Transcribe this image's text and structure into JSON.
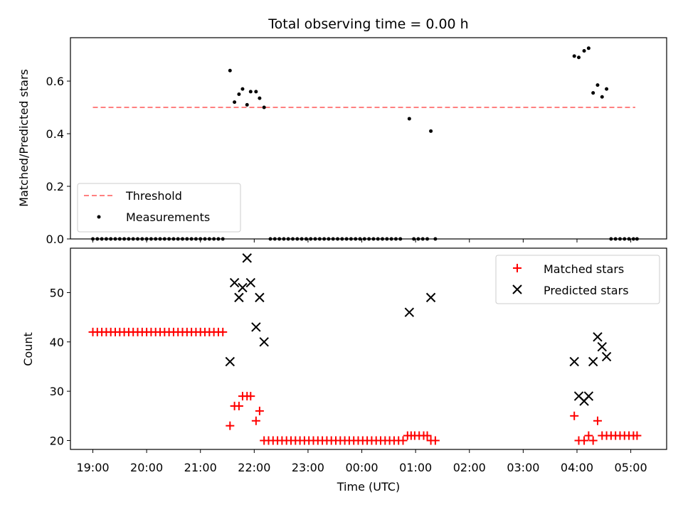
{
  "chart_data": [
    {
      "type": "scatter",
      "title": "Total observing time = 0.00 h",
      "xlabel": "",
      "ylabel": "Matched/Predicted stars",
      "xlim": [
        "18:35",
        "05:40"
      ],
      "ylim": [
        0,
        0.765
      ],
      "yticks": [
        0.0,
        0.2,
        0.4,
        0.6
      ],
      "ytick_labels": [
        "0.0",
        "0.2",
        "0.4",
        "0.6"
      ],
      "grid": false,
      "legend": "lower-left",
      "threshold": {
        "name": "Threshold",
        "value": 0.5,
        "x_start": "19:00",
        "x_end": "05:05",
        "color": "#ff8080",
        "style": "dashed"
      },
      "series": [
        {
          "name": "Measurements",
          "marker": "dot",
          "color": "#000000",
          "points": [
            [
              "19:00",
              0
            ],
            [
              "19:05",
              0
            ],
            [
              "19:10",
              0
            ],
            [
              "19:15",
              0
            ],
            [
              "19:20",
              0
            ],
            [
              "19:25",
              0
            ],
            [
              "19:30",
              0
            ],
            [
              "19:35",
              0
            ],
            [
              "19:40",
              0
            ],
            [
              "19:45",
              0
            ],
            [
              "19:50",
              0
            ],
            [
              "19:55",
              0
            ],
            [
              "20:00",
              0
            ],
            [
              "20:05",
              0
            ],
            [
              "20:10",
              0
            ],
            [
              "20:15",
              0
            ],
            [
              "20:20",
              0
            ],
            [
              "20:25",
              0
            ],
            [
              "20:30",
              0
            ],
            [
              "20:35",
              0
            ],
            [
              "20:40",
              0
            ],
            [
              "20:45",
              0
            ],
            [
              "20:50",
              0
            ],
            [
              "20:55",
              0
            ],
            [
              "21:00",
              0
            ],
            [
              "21:05",
              0
            ],
            [
              "21:10",
              0
            ],
            [
              "21:15",
              0
            ],
            [
              "21:20",
              0
            ],
            [
              "21:25",
              0
            ],
            [
              "21:33",
              0.64
            ],
            [
              "21:38",
              0.52
            ],
            [
              "21:43",
              0.55
            ],
            [
              "21:47",
              0.57
            ],
            [
              "21:52",
              0.51
            ],
            [
              "21:56",
              0.56
            ],
            [
              "22:02",
              0.56
            ],
            [
              "22:06",
              0.535
            ],
            [
              "22:11",
              0.5
            ],
            [
              "22:18",
              0
            ],
            [
              "22:23",
              0
            ],
            [
              "22:28",
              0
            ],
            [
              "22:33",
              0
            ],
            [
              "22:38",
              0
            ],
            [
              "22:43",
              0
            ],
            [
              "22:48",
              0
            ],
            [
              "22:53",
              0
            ],
            [
              "22:58",
              0
            ],
            [
              "23:03",
              0
            ],
            [
              "23:08",
              0
            ],
            [
              "23:13",
              0
            ],
            [
              "23:18",
              0
            ],
            [
              "23:23",
              0
            ],
            [
              "23:28",
              0
            ],
            [
              "23:33",
              0
            ],
            [
              "23:38",
              0
            ],
            [
              "23:43",
              0
            ],
            [
              "23:48",
              0
            ],
            [
              "23:53",
              0
            ],
            [
              "23:58",
              0
            ],
            [
              "00:03",
              0
            ],
            [
              "00:08",
              0
            ],
            [
              "00:13",
              0
            ],
            [
              "00:18",
              0
            ],
            [
              "00:23",
              0
            ],
            [
              "00:28",
              0
            ],
            [
              "00:33",
              0
            ],
            [
              "00:38",
              0
            ],
            [
              "00:43",
              0
            ],
            [
              "00:53",
              0.457
            ],
            [
              "00:58",
              0
            ],
            [
              "01:03",
              0
            ],
            [
              "01:08",
              0
            ],
            [
              "01:13",
              0
            ],
            [
              "01:17",
              0.41
            ],
            [
              "01:22",
              0
            ],
            [
              "03:57",
              0.695
            ],
            [
              "04:02",
              0.69
            ],
            [
              "04:08",
              0.715
            ],
            [
              "04:13",
              0.725
            ],
            [
              "04:18",
              0.555
            ],
            [
              "04:23",
              0.585
            ],
            [
              "04:28",
              0.54
            ],
            [
              "04:33",
              0.57
            ],
            [
              "04:38",
              0
            ],
            [
              "04:43",
              0
            ],
            [
              "04:48",
              0
            ],
            [
              "04:53",
              0
            ],
            [
              "04:58",
              0
            ],
            [
              "05:03",
              0
            ],
            [
              "05:07",
              0
            ]
          ]
        }
      ]
    },
    {
      "type": "scatter",
      "title": "",
      "xlabel": "Time (UTC)",
      "ylabel": "Count",
      "xlim": [
        "18:35",
        "05:40"
      ],
      "ylim": [
        18.2,
        59
      ],
      "yticks": [
        20,
        30,
        40,
        50
      ],
      "ytick_labels": [
        "20",
        "30",
        "40",
        "50"
      ],
      "xticks": [
        "19:00",
        "20:00",
        "21:00",
        "22:00",
        "23:00",
        "00:00",
        "01:00",
        "02:00",
        "03:00",
        "04:00",
        "05:00"
      ],
      "grid": false,
      "legend": "upper-right",
      "series": [
        {
          "name": "Matched stars",
          "marker": "plus",
          "color": "#ff0000",
          "points": [
            [
              "19:00",
              42
            ],
            [
              "19:05",
              42
            ],
            [
              "19:10",
              42
            ],
            [
              "19:15",
              42
            ],
            [
              "19:20",
              42
            ],
            [
              "19:25",
              42
            ],
            [
              "19:30",
              42
            ],
            [
              "19:35",
              42
            ],
            [
              "19:40",
              42
            ],
            [
              "19:45",
              42
            ],
            [
              "19:50",
              42
            ],
            [
              "19:55",
              42
            ],
            [
              "20:00",
              42
            ],
            [
              "20:05",
              42
            ],
            [
              "20:10",
              42
            ],
            [
              "20:15",
              42
            ],
            [
              "20:20",
              42
            ],
            [
              "20:25",
              42
            ],
            [
              "20:30",
              42
            ],
            [
              "20:35",
              42
            ],
            [
              "20:40",
              42
            ],
            [
              "20:45",
              42
            ],
            [
              "20:50",
              42
            ],
            [
              "20:55",
              42
            ],
            [
              "21:00",
              42
            ],
            [
              "21:05",
              42
            ],
            [
              "21:10",
              42
            ],
            [
              "21:15",
              42
            ],
            [
              "21:20",
              42
            ],
            [
              "21:25",
              42
            ],
            [
              "21:33",
              23
            ],
            [
              "21:38",
              27
            ],
            [
              "21:43",
              27
            ],
            [
              "21:47",
              29
            ],
            [
              "21:52",
              29
            ],
            [
              "21:56",
              29
            ],
            [
              "22:02",
              24
            ],
            [
              "22:06",
              26
            ],
            [
              "22:11",
              20
            ],
            [
              "22:16",
              20
            ],
            [
              "22:21",
              20
            ],
            [
              "22:26",
              20
            ],
            [
              "22:31",
              20
            ],
            [
              "22:36",
              20
            ],
            [
              "22:41",
              20
            ],
            [
              "22:46",
              20
            ],
            [
              "22:51",
              20
            ],
            [
              "22:56",
              20
            ],
            [
              "23:01",
              20
            ],
            [
              "23:06",
              20
            ],
            [
              "23:11",
              20
            ],
            [
              "23:16",
              20
            ],
            [
              "23:21",
              20
            ],
            [
              "23:26",
              20
            ],
            [
              "23:31",
              20
            ],
            [
              "23:36",
              20
            ],
            [
              "23:41",
              20
            ],
            [
              "23:46",
              20
            ],
            [
              "23:51",
              20
            ],
            [
              "23:56",
              20
            ],
            [
              "00:01",
              20
            ],
            [
              "00:06",
              20
            ],
            [
              "00:11",
              20
            ],
            [
              "00:16",
              20
            ],
            [
              "00:21",
              20
            ],
            [
              "00:26",
              20
            ],
            [
              "00:31",
              20
            ],
            [
              "00:36",
              20
            ],
            [
              "00:41",
              20
            ],
            [
              "00:46",
              20
            ],
            [
              "00:51",
              21
            ],
            [
              "00:55",
              21
            ],
            [
              "00:59",
              21
            ],
            [
              "01:04",
              21
            ],
            [
              "01:09",
              21
            ],
            [
              "01:13",
              21
            ],
            [
              "01:17",
              20
            ],
            [
              "01:22",
              20
            ],
            [
              "03:57",
              25
            ],
            [
              "04:02",
              20
            ],
            [
              "04:08",
              20
            ],
            [
              "04:13",
              21
            ],
            [
              "04:18",
              20
            ],
            [
              "04:23",
              24
            ],
            [
              "04:28",
              21
            ],
            [
              "04:33",
              21
            ],
            [
              "04:38",
              21
            ],
            [
              "04:43",
              21
            ],
            [
              "04:48",
              21
            ],
            [
              "04:53",
              21
            ],
            [
              "04:58",
              21
            ],
            [
              "05:03",
              21
            ],
            [
              "05:07",
              21
            ]
          ]
        },
        {
          "name": "Predicted stars",
          "marker": "x",
          "color": "#000000",
          "points": [
            [
              "21:33",
              36
            ],
            [
              "21:38",
              52
            ],
            [
              "21:43",
              49
            ],
            [
              "21:47",
              51
            ],
            [
              "21:52",
              57
            ],
            [
              "21:56",
              52
            ],
            [
              "22:02",
              43
            ],
            [
              "22:06",
              49
            ],
            [
              "22:11",
              40
            ],
            [
              "00:53",
              46
            ],
            [
              "01:17",
              49
            ],
            [
              "03:57",
              36
            ],
            [
              "04:02",
              29
            ],
            [
              "04:08",
              28
            ],
            [
              "04:13",
              29
            ],
            [
              "04:18",
              36
            ],
            [
              "04:23",
              41
            ],
            [
              "04:28",
              39
            ],
            [
              "04:33",
              37
            ]
          ]
        }
      ]
    }
  ]
}
